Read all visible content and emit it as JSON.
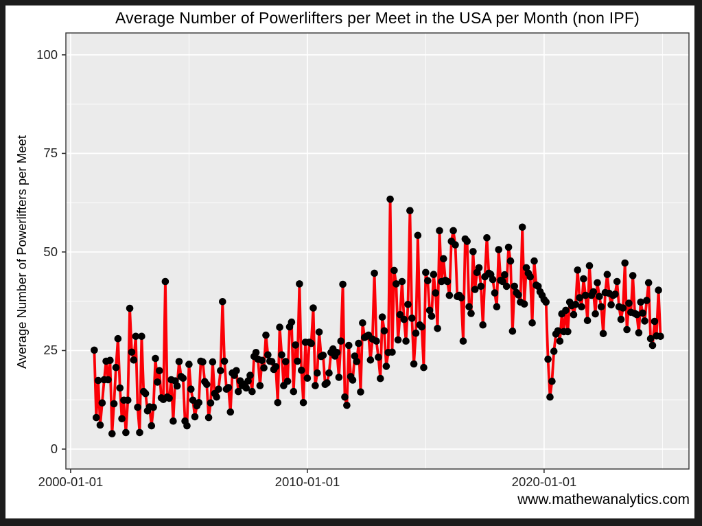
{
  "title": "Average Number of Powerlifters per Meet in the USA per Month (non IPF)",
  "watermark": "www.mathewanalytics.com",
  "colors": {
    "line": "#fb0007",
    "point": "#000000",
    "panel_bg": "#ebebeb",
    "grid": "#ffffff",
    "panel_border": "#333333",
    "tick": "#333333",
    "frame": "#1c1c1c",
    "page_bg": "#ffffff"
  },
  "chart_data": {
    "type": "line",
    "title": "Average Number of Powerlifters per Meet in the USA per Month (non IPF)",
    "xlabel": "",
    "ylabel": "Average Number of Powerlifters per Meet",
    "x_tick_labels": [
      "2000-01-01",
      "2010-01-01",
      "2020-01-01"
    ],
    "x_tick_years": [
      2000,
      2010,
      2020
    ],
    "x_minor_years": [
      2005,
      2015,
      2025
    ],
    "y_tick_labels": [
      "0",
      "25",
      "50",
      "75",
      "100"
    ],
    "y_ticks": [
      0,
      25,
      50,
      75,
      100
    ],
    "y_minor_ticks": [
      12.5,
      37.5,
      62.5,
      87.5
    ],
    "xlim_years": [
      1999.8,
      2026.12
    ],
    "ylim": [
      -5.05,
      105.55
    ],
    "grid": true,
    "legend": "none",
    "x_start": "2001-01",
    "x_frequency": "monthly",
    "values": [
      25.1,
      8.0,
      17.4,
      6.1,
      11.7,
      17.6,
      22.3,
      17.6,
      22.5,
      3.9,
      11.5,
      20.7,
      28.0,
      15.5,
      7.7,
      12.4,
      4.2,
      12.4,
      35.7,
      24.6,
      22.6,
      28.6,
      10.6,
      4.2,
      28.6,
      14.6,
      14.1,
      9.7,
      10.7,
      5.9,
      10.6,
      23.0,
      17.0,
      19.9,
      13.0,
      12.6,
      42.5,
      13.2,
      12.9,
      17.6,
      7.1,
      17.3,
      16.0,
      22.2,
      18.4,
      18.0,
      7.1,
      5.9,
      21.5,
      15.2,
      12.4,
      8.2,
      11.0,
      11.8,
      22.3,
      22.1,
      17.1,
      16.4,
      8.0,
      11.7,
      22.1,
      14.1,
      13.2,
      15.2,
      19.9,
      37.4,
      22.3,
      15.2,
      15.6,
      9.4,
      19.3,
      18.7,
      19.9,
      14.6,
      17.3,
      16.1,
      16.4,
      15.5,
      17.3,
      18.7,
      14.6,
      23.5,
      24.5,
      22.8,
      16.1,
      22.5,
      20.6,
      28.9,
      23.9,
      22.3,
      22.2,
      20.2,
      20.9,
      11.8,
      30.9,
      23.9,
      16.1,
      22.2,
      17.2,
      31.0,
      32.2,
      14.6,
      26.4,
      22.3,
      41.9,
      20.0,
      11.8,
      27.1,
      18.0,
      27.1,
      26.8,
      35.8,
      16.1,
      19.3,
      29.7,
      23.5,
      23.8,
      16.4,
      16.8,
      19.3,
      24.5,
      25.4,
      23.6,
      24.5,
      18.2,
      27.4,
      41.8,
      13.2,
      11.1,
      26.3,
      18.4,
      17.5,
      23.6,
      22.2,
      26.8,
      14.5,
      32.0,
      28.3,
      28.6,
      28.9,
      22.6,
      27.9,
      44.6,
      27.4,
      23.3,
      17.9,
      33.5,
      30.0,
      21.0,
      24.5,
      63.4,
      24.6,
      45.3,
      41.9,
      27.7,
      34.1,
      42.5,
      32.9,
      27.4,
      36.7,
      60.5,
      33.2,
      21.6,
      29.4,
      54.2,
      31.5,
      31.0,
      20.7,
      44.8,
      42.7,
      35.2,
      33.7,
      44.3,
      39.6,
      30.6,
      55.4,
      42.5,
      48.3,
      42.8,
      42.5,
      39.0,
      52.7,
      55.4,
      51.8,
      38.7,
      39.0,
      38.4,
      27.4,
      53.3,
      52.7,
      36.1,
      34.4,
      50.1,
      40.5,
      44.8,
      46.0,
      41.3,
      31.5,
      43.7,
      53.6,
      44.6,
      44.3,
      43.0,
      39.6,
      36.1,
      50.6,
      42.8,
      42.5,
      44.2,
      41.3,
      51.2,
      47.7,
      29.9,
      41.3,
      39.7,
      39.1,
      37.3,
      56.3,
      36.8,
      46.0,
      44.6,
      43.7,
      32.0,
      47.7,
      41.6,
      41.3,
      39.9,
      39.0,
      37.9,
      37.3,
      22.8,
      13.2,
      17.2,
      24.8,
      29.2,
      30.0,
      27.4,
      34.3,
      29.8,
      35.2,
      29.8,
      37.3,
      36.4,
      34.1,
      36.7,
      45.4,
      38.4,
      36.1,
      43.2,
      39.0,
      32.6,
      46.5,
      39.0,
      39.9,
      34.3,
      42.2,
      38.7,
      36.1,
      29.3,
      39.7,
      44.3,
      39.5,
      36.6,
      39.0,
      39.3,
      42.5,
      36.1,
      32.9,
      35.8,
      47.2,
      30.3,
      37.0,
      34.7,
      44.0,
      34.4,
      34.1,
      29.5,
      37.3,
      34.5,
      32.5,
      37.7,
      42.2,
      28.0,
      26.3,
      32.4,
      28.7,
      40.3,
      28.6
    ]
  }
}
